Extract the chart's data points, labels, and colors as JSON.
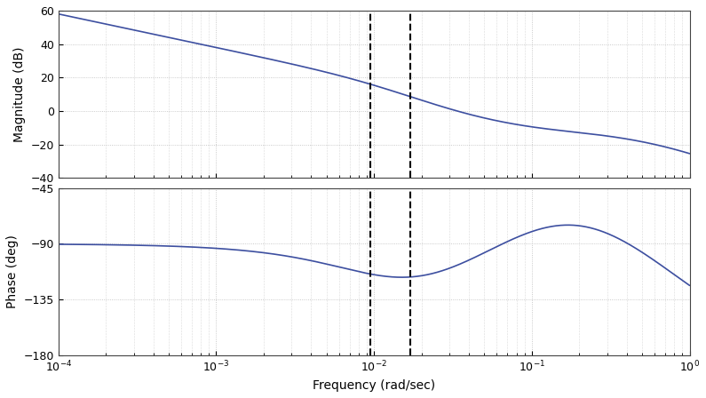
{
  "xlabel": "Frequency (rad/sec)",
  "ylabel_mag": "Magnitude (dB)",
  "ylabel_phase": "Phase (deg)",
  "freq_range": [
    0.0001,
    1.0
  ],
  "mag_ylim": [
    -40,
    60
  ],
  "phase_ylim": [
    -180,
    -45
  ],
  "mag_yticks": [
    -40,
    -20,
    0,
    20,
    40,
    60
  ],
  "phase_yticks": [
    -180,
    -135,
    -90,
    -45
  ],
  "vline1": 0.0095,
  "vline2": 0.017,
  "line_color": "#3d4fa0",
  "vline_color": "#000000",
  "background_color": "#ffffff",
  "grid_dot_color": "#bbbbbb",
  "fig_width": 7.95,
  "fig_height": 4.48,
  "dpi": 100
}
